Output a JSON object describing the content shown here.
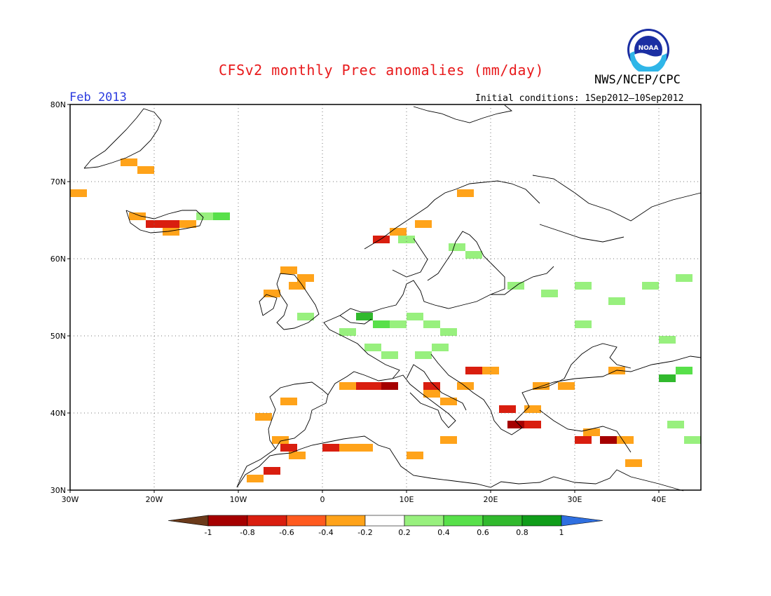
{
  "header": {
    "title": "CFSv2 monthly Prec anomalies (mm/day)",
    "agency": "NWS/NCEP/CPC",
    "valid_month": "Feb 2013",
    "initial_conditions": "Initial conditions: 1Sep2012–10Sep2012",
    "logo_text": "NOAA"
  },
  "map": {
    "lon_range": [
      -30,
      45
    ],
    "lat_range": [
      30,
      80
    ],
    "lon_ticks": [
      "30W",
      "20W",
      "10W",
      "0",
      "10E",
      "20E",
      "30E",
      "40E"
    ],
    "lat_ticks": [
      "30N",
      "40N",
      "50N",
      "60N",
      "70N",
      "80N"
    ],
    "grid": "dotted every 10 degrees"
  },
  "colorbar": {
    "labels": [
      "-1",
      "-0.8",
      "-0.6",
      "-0.4",
      "-0.2",
      "0.2",
      "0.4",
      "0.6",
      "0.8",
      "1"
    ],
    "colors": {
      "lt_-1": "#6b3a1a",
      "-1_-0.8": "#a50000",
      "-0.8_-0.6": "#d91e0f",
      "-0.6_-0.4": "#ff5a1f",
      "-0.4_-0.2": "#ffa31a",
      "-0.2_0.2": "#ffffff",
      "0.2_0.4": "#98f07e",
      "0.4_0.6": "#58e04a",
      "0.6_0.8": "#31b92d",
      "0.8_1": "#109d1a",
      "gt_1": "#2f6fe0"
    }
  },
  "anomaly_cells": [
    {
      "lon": -30,
      "lat": 68.5,
      "c": "o"
    },
    {
      "lon": -24,
      "lat": 72.5,
      "c": "o"
    },
    {
      "lon": -22,
      "lat": 71.5,
      "c": "o"
    },
    {
      "lon": -23,
      "lat": 65.5,
      "c": "o"
    },
    {
      "lon": -21,
      "lat": 64.5,
      "c": "r"
    },
    {
      "lon": -19,
      "lat": 64.5,
      "c": "r"
    },
    {
      "lon": -19,
      "lat": 63.5,
      "c": "o"
    },
    {
      "lon": -17,
      "lat": 64.5,
      "c": "o"
    },
    {
      "lon": -15,
      "lat": 65.5,
      "c": "g1"
    },
    {
      "lon": -13,
      "lat": 65.5,
      "c": "g2"
    },
    {
      "lon": -5,
      "lat": 58.5,
      "c": "o"
    },
    {
      "lon": -3,
      "lat": 57.5,
      "c": "o"
    },
    {
      "lon": -4,
      "lat": 56.5,
      "c": "o"
    },
    {
      "lon": -7,
      "lat": 55.5,
      "c": "o"
    },
    {
      "lon": -3,
      "lat": 52.5,
      "c": "g1"
    },
    {
      "lon": 2,
      "lat": 50.5,
      "c": "g1"
    },
    {
      "lon": 4,
      "lat": 52.5,
      "c": "g3"
    },
    {
      "lon": 6,
      "lat": 51.5,
      "c": "g2"
    },
    {
      "lon": 8,
      "lat": 51.5,
      "c": "g1"
    },
    {
      "lon": 10,
      "lat": 52.5,
      "c": "g1"
    },
    {
      "lon": 12,
      "lat": 51.5,
      "c": "g1"
    },
    {
      "lon": 14,
      "lat": 50.5,
      "c": "g1"
    },
    {
      "lon": 5,
      "lat": 48.5,
      "c": "g1"
    },
    {
      "lon": 7,
      "lat": 47.5,
      "c": "g1"
    },
    {
      "lon": 11,
      "lat": 47.5,
      "c": "g1"
    },
    {
      "lon": 13,
      "lat": 48.5,
      "c": "g1"
    },
    {
      "lon": 9,
      "lat": 62.5,
      "c": "g1"
    },
    {
      "lon": 15,
      "lat": 61.5,
      "c": "g1"
    },
    {
      "lon": 17,
      "lat": 60.5,
      "c": "g1"
    },
    {
      "lon": 6,
      "lat": 62.5,
      "c": "r"
    },
    {
      "lon": 8,
      "lat": 63.5,
      "c": "o"
    },
    {
      "lon": 11,
      "lat": 64.5,
      "c": "o"
    },
    {
      "lon": 16,
      "lat": 68.5,
      "c": "o"
    },
    {
      "lon": 22,
      "lat": 56.5,
      "c": "g1"
    },
    {
      "lon": 26,
      "lat": 55.5,
      "c": "g1"
    },
    {
      "lon": 30,
      "lat": 56.5,
      "c": "g1"
    },
    {
      "lon": 34,
      "lat": 54.5,
      "c": "g1"
    },
    {
      "lon": 38,
      "lat": 56.5,
      "c": "g1"
    },
    {
      "lon": 42,
      "lat": 57.5,
      "c": "g1"
    },
    {
      "lon": 30,
      "lat": 51.5,
      "c": "g1"
    },
    {
      "lon": 40,
      "lat": 49.5,
      "c": "g1"
    },
    {
      "lon": 40,
      "lat": 44.5,
      "c": "g3"
    },
    {
      "lon": 42,
      "lat": 45.5,
      "c": "g2"
    },
    {
      "lon": 34,
      "lat": 45.5,
      "c": "o"
    },
    {
      "lon": 4,
      "lat": 43.5,
      "c": "r"
    },
    {
      "lon": 6,
      "lat": 43.5,
      "c": "r"
    },
    {
      "lon": 7,
      "lat": 43.5,
      "c": "dr"
    },
    {
      "lon": 2,
      "lat": 43.5,
      "c": "o"
    },
    {
      "lon": 12,
      "lat": 43.5,
      "c": "r"
    },
    {
      "lon": 12,
      "lat": 42.5,
      "c": "o"
    },
    {
      "lon": 14,
      "lat": 41.5,
      "c": "o"
    },
    {
      "lon": 17,
      "lat": 45.5,
      "c": "r"
    },
    {
      "lon": 19,
      "lat": 45.5,
      "c": "o"
    },
    {
      "lon": 16,
      "lat": 43.5,
      "c": "o"
    },
    {
      "lon": 21,
      "lat": 40.5,
      "c": "r"
    },
    {
      "lon": 22,
      "lat": 38.5,
      "c": "dr"
    },
    {
      "lon": 24,
      "lat": 38.5,
      "c": "r"
    },
    {
      "lon": 24,
      "lat": 40.5,
      "c": "o"
    },
    {
      "lon": 25,
      "lat": 43.5,
      "c": "o"
    },
    {
      "lon": 28,
      "lat": 43.5,
      "c": "o"
    },
    {
      "lon": 30,
      "lat": 36.5,
      "c": "r"
    },
    {
      "lon": 33,
      "lat": 36.5,
      "c": "dr"
    },
    {
      "lon": 31,
      "lat": 37.5,
      "c": "o"
    },
    {
      "lon": 35,
      "lat": 36.5,
      "c": "o"
    },
    {
      "lon": -8,
      "lat": 39.5,
      "c": "o"
    },
    {
      "lon": -5,
      "lat": 41.5,
      "c": "o"
    },
    {
      "lon": -6,
      "lat": 36.5,
      "c": "o"
    },
    {
      "lon": -5,
      "lat": 35.5,
      "c": "r"
    },
    {
      "lon": 0,
      "lat": 35.5,
      "c": "r"
    },
    {
      "lon": 2,
      "lat": 35.5,
      "c": "o"
    },
    {
      "lon": 4,
      "lat": 35.5,
      "c": "o"
    },
    {
      "lon": -7,
      "lat": 32.5,
      "c": "r"
    },
    {
      "lon": -9,
      "lat": 31.5,
      "c": "o"
    },
    {
      "lon": -4,
      "lat": 34.5,
      "c": "o"
    },
    {
      "lon": 10,
      "lat": 34.5,
      "c": "o"
    },
    {
      "lon": 14,
      "lat": 36.5,
      "c": "o"
    },
    {
      "lon": 41,
      "lat": 38.5,
      "c": "g1"
    },
    {
      "lon": 43,
      "lat": 36.5,
      "c": "g1"
    },
    {
      "lon": 36,
      "lat": 33.5,
      "c": "o"
    }
  ]
}
